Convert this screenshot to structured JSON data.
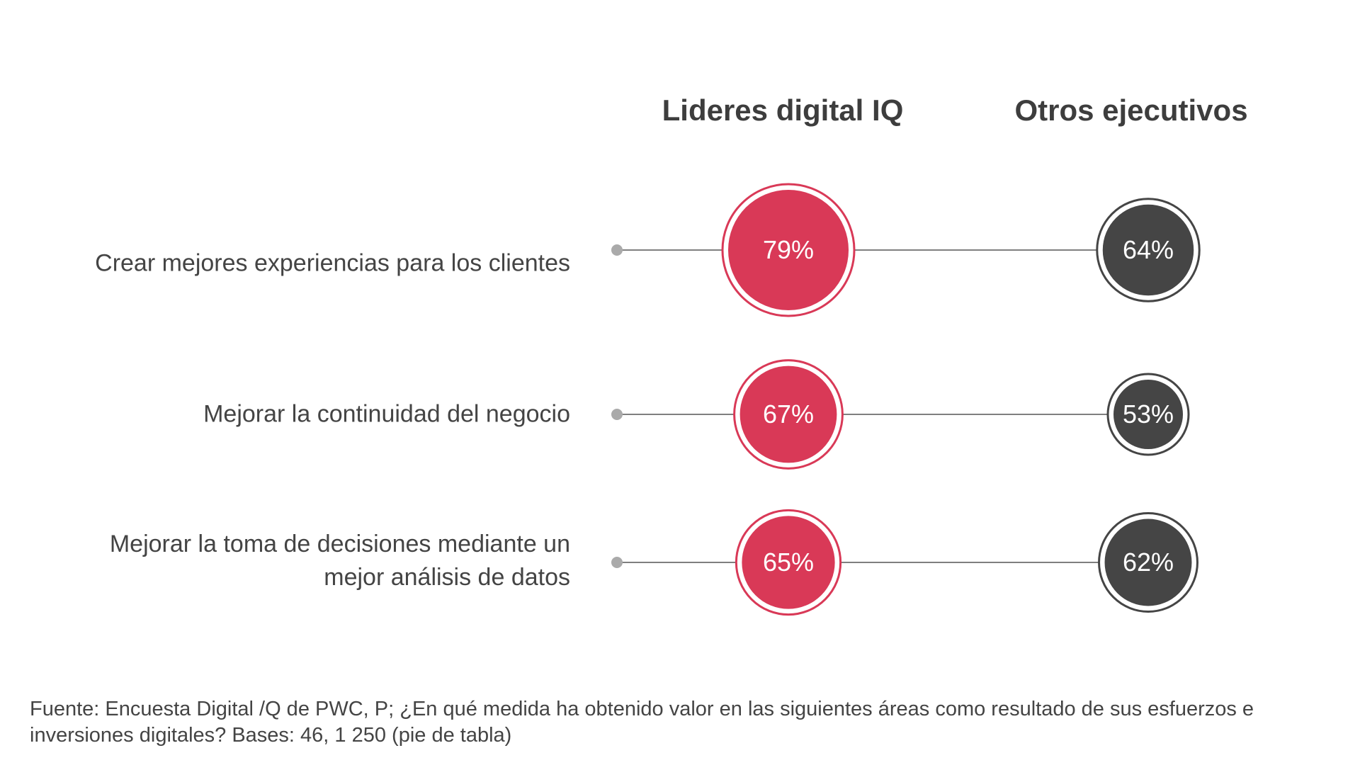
{
  "chart_data": {
    "type": "dot-comparison",
    "series": [
      {
        "name": "Lideres digital IQ",
        "color": "#d93957",
        "values": [
          79,
          67,
          65
        ]
      },
      {
        "name": "Otros ejecutivos",
        "color": "#454545",
        "values": [
          64,
          53,
          62
        ]
      }
    ],
    "categories": [
      "Crear mejores experiencias para los clientes",
      "Mejorar la continuidad del negocio",
      "Mejorar la toma de decisiones mediante un mejor análisis de datos"
    ],
    "value_labels": [
      [
        "79%",
        "67%",
        "65%"
      ],
      [
        "64%",
        "53%",
        "62%"
      ]
    ],
    "unit": "%"
  },
  "footnote": "Fuente: Encuesta Digital /Q de PWC, P; ¿En qué medida ha obtenido valor en las siguientes áreas como resultado de sus esfuerzos e inversiones digitales? Bases: 46, 1 250 (pie de tabla)"
}
